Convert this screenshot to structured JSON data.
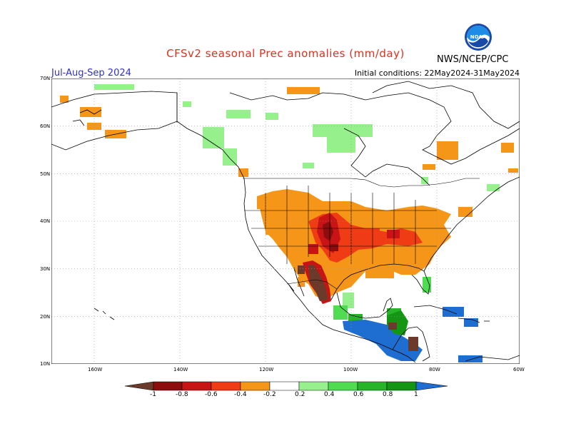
{
  "header": {
    "title": "CFSv2 seasonal Prec anomalies (mm/day)",
    "season": "Jul-Aug-Sep 2024",
    "initial_conditions": "Initial conditions: 22May2024-31May2024",
    "agency": "NWS/NCEP/CPC",
    "logo_text": "NOAA"
  },
  "map": {
    "lon_range": [
      -190,
      -60
    ],
    "lat_range": [
      10,
      70
    ],
    "lat_labels": [
      "70N",
      "60N",
      "50N",
      "40N",
      "30N",
      "20N",
      "10N"
    ],
    "lon_labels": [
      "160W",
      "140W",
      "120W",
      "100W",
      "80W",
      "60W"
    ]
  },
  "legend": {
    "labels": [
      "-1",
      "-0.8",
      "-0.6",
      "-0.4",
      "-0.2",
      "0.2",
      "0.4",
      "0.6",
      "0.8",
      "1"
    ],
    "colors": {
      "lt_-1": "#6b3a2a",
      "-1_-0.8": "#8b0d0d",
      "-0.8_-0.6": "#c81414",
      "-0.6_-0.4": "#f03c14",
      "-0.4_-0.2": "#f59618",
      "neutral": "#ffffff",
      "0.2_0.4": "#96f08c",
      "0.4_0.6": "#50dc50",
      "0.6_0.8": "#28b428",
      "0.8_1": "#149614",
      "gt_1": "#1e6ed2"
    }
  }
}
